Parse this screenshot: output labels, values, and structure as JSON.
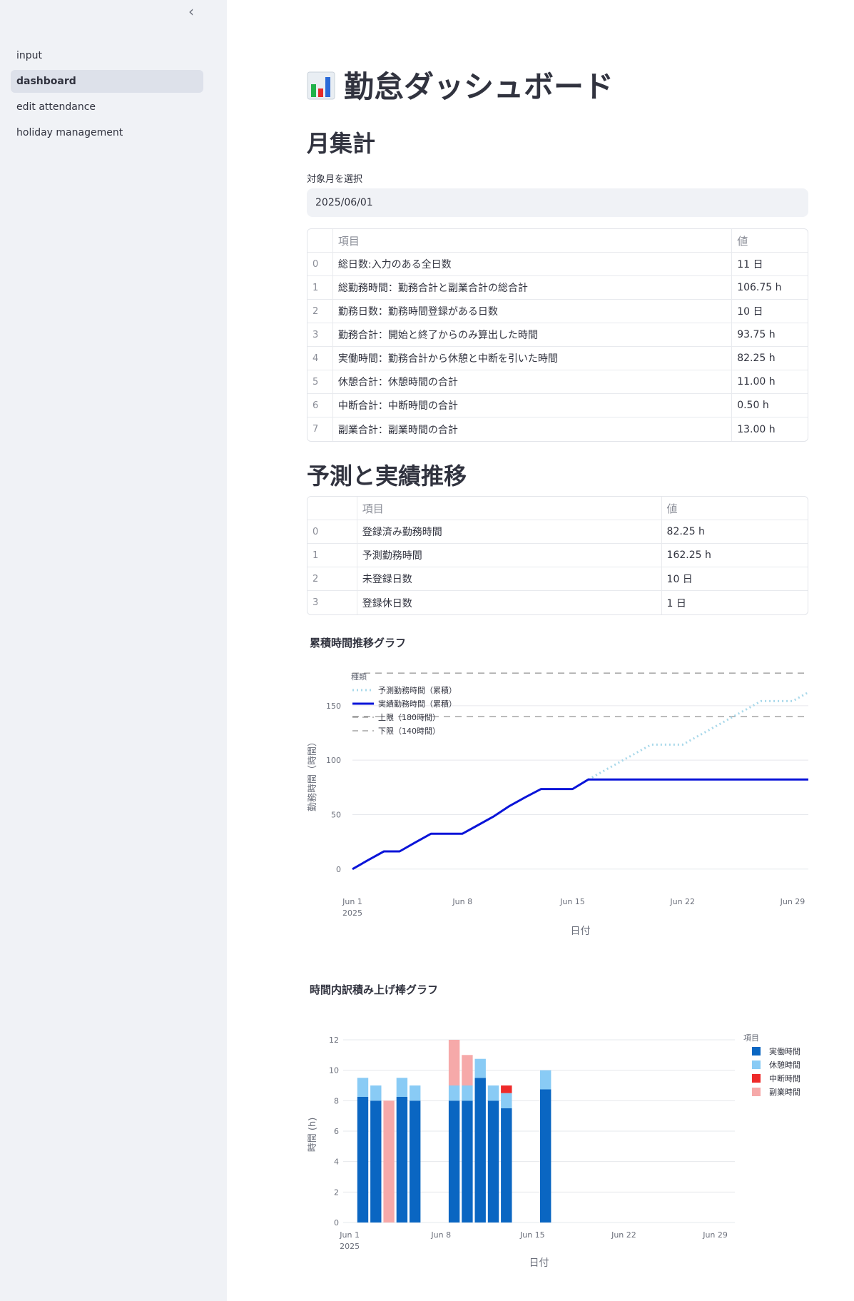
{
  "sidebar": {
    "collapse_glyph": "‹",
    "items": [
      {
        "label": "input",
        "active": false
      },
      {
        "label": "dashboard",
        "active": true
      },
      {
        "label": "edit attendance",
        "active": false
      },
      {
        "label": "holiday management",
        "active": false
      }
    ]
  },
  "page": {
    "title_icon": "bar-chart-icon",
    "title": "勤怠ダッシュボード",
    "monthly_heading": "月集計",
    "month_label": "対象月を選択",
    "month_value": "2025/06/01",
    "forecast_heading": "予測と実績推移"
  },
  "summary_table": {
    "columns": [
      "",
      "項目",
      "値"
    ],
    "rows": [
      {
        "index": "0",
        "item": "総日数:入力のある全日数",
        "value": "11 日"
      },
      {
        "index": "1",
        "item": "総勤務時間：勤務合計と副業合計の総合計",
        "value": "106.75 h"
      },
      {
        "index": "2",
        "item": "勤務日数：勤務時間登録がある日数",
        "value": "10 日"
      },
      {
        "index": "3",
        "item": "勤務合計：開始と終了からのみ算出した時間",
        "value": "93.75 h"
      },
      {
        "index": "4",
        "item": "実働時間：勤務合計から休憩と中断を引いた時間",
        "value": "82.25 h"
      },
      {
        "index": "5",
        "item": "休憩合計：休憩時間の合計",
        "value": "11.00 h"
      },
      {
        "index": "6",
        "item": "中断合計：中断時間の合計",
        "value": "0.50 h"
      },
      {
        "index": "7",
        "item": "副業合計：副業時間の合計",
        "value": "13.00 h"
      }
    ]
  },
  "forecast_table": {
    "columns": [
      "",
      "項目",
      "値"
    ],
    "rows": [
      {
        "index": "0",
        "item": "登録済み勤務時間",
        "value": "82.25 h"
      },
      {
        "index": "1",
        "item": "予測勤務時間",
        "value": "162.25 h"
      },
      {
        "index": "2",
        "item": "未登録日数",
        "value": "10 日"
      },
      {
        "index": "3",
        "item": "登録休日数",
        "value": "1 日"
      }
    ]
  },
  "chart_data": [
    {
      "type": "line",
      "title": "累積時間推移グラフ",
      "xlabel": "日付",
      "ylabel": "勤務時間（時間）",
      "legend_title": "種類",
      "legend_placement": "top-left",
      "x_tick_labels": [
        "Jun 1",
        "Jun 8",
        "Jun 15",
        "Jun 22",
        "Jun 29"
      ],
      "x_tick_days": [
        1,
        8,
        15,
        22,
        29
      ],
      "x_year_label": "2025",
      "xlim_days": [
        1,
        30
      ],
      "y_ticks": [
        0,
        50,
        100,
        150
      ],
      "ylim": [
        -8,
        182
      ],
      "grid": true,
      "colors": {
        "forecast": "#a8d8ea",
        "actual": "#0a14d8",
        "limit": "#777777",
        "grid": "#e6e8ec"
      },
      "series": [
        {
          "name": "予測勤務時間（累積）",
          "style": "dotted",
          "x": [
            16,
            17,
            18,
            19,
            20,
            21,
            22,
            23,
            24,
            25,
            26,
            27,
            28,
            29,
            30
          ],
          "y": [
            82.25,
            90.25,
            98.25,
            106.25,
            114.25,
            114.25,
            114.25,
            122.25,
            130.25,
            138.25,
            146.25,
            154.25,
            154.25,
            154.25,
            162.25
          ]
        },
        {
          "name": "実績勤務時間（累積）",
          "style": "solid",
          "x": [
            1,
            2,
            3,
            4,
            5,
            6,
            7,
            8,
            9,
            10,
            11,
            12,
            13,
            14,
            15,
            16,
            17,
            18,
            19,
            20,
            21,
            22,
            23,
            24,
            25,
            26,
            27,
            28,
            29,
            30
          ],
          "y": [
            0,
            8.25,
            16.25,
            16.25,
            24.5,
            32.5,
            32.5,
            32.5,
            40.5,
            48.5,
            58,
            66,
            73.5,
            73.5,
            73.5,
            82.25,
            82.25,
            82.25,
            82.25,
            82.25,
            82.25,
            82.25,
            82.25,
            82.25,
            82.25,
            82.25,
            82.25,
            82.25,
            82.25,
            82.25
          ]
        },
        {
          "name": "上限（180時間）",
          "style": "dashed",
          "x": [
            1,
            30
          ],
          "y": [
            180,
            180
          ]
        },
        {
          "name": "下限（140時間）",
          "style": "dashed",
          "x": [
            1,
            30
          ],
          "y": [
            140,
            140
          ]
        }
      ]
    },
    {
      "type": "bar",
      "stacked": true,
      "title": "時間内訳積み上げ棒グラフ",
      "xlabel": "日付",
      "ylabel": "時間 (h)",
      "legend_title": "項目",
      "legend_placement": "right",
      "x_tick_labels": [
        "Jun 1",
        "Jun 8",
        "Jun 15",
        "Jun 22",
        "Jun 29"
      ],
      "x_tick_days": [
        1,
        8,
        15,
        22,
        29
      ],
      "x_year_label": "2025",
      "xlim_days": [
        0.5,
        30.5
      ],
      "y_ticks": [
        0,
        2,
        4,
        6,
        8,
        10,
        12
      ],
      "ylim": [
        0,
        12
      ],
      "grid": true,
      "x_days": [
        2,
        3,
        4,
        5,
        6,
        9,
        10,
        11,
        12,
        13,
        16
      ],
      "series": [
        {
          "name": "実働時間",
          "color": "#0a66c2",
          "values": [
            8.25,
            8,
            0,
            8.25,
            8,
            8,
            8,
            9.5,
            8,
            7.5,
            8.75
          ]
        },
        {
          "name": "休憩時間",
          "color": "#89cbf5",
          "values": [
            1.25,
            1,
            0,
            1.25,
            1,
            1,
            1,
            1.25,
            1,
            1,
            1.25
          ]
        },
        {
          "name": "中断時間",
          "color": "#ee2a2a",
          "values": [
            0,
            0,
            0,
            0,
            0,
            0,
            0,
            0,
            0,
            0.5,
            0
          ]
        },
        {
          "name": "副業時間",
          "color": "#f6a9a9",
          "values": [
            0,
            0,
            8,
            0,
            0,
            3,
            2,
            0,
            0,
            0,
            0
          ]
        }
      ]
    }
  ]
}
